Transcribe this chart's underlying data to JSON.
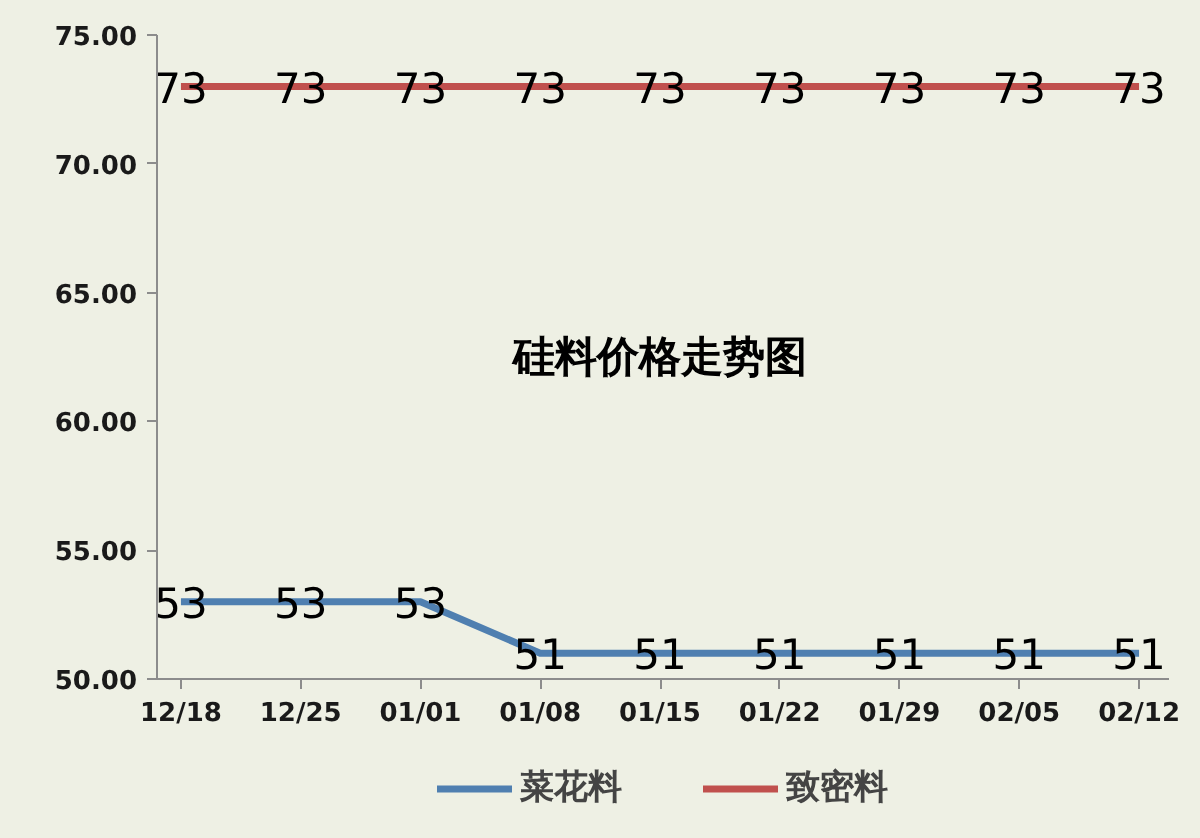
{
  "chart_data": {
    "type": "line",
    "title": "硅料价格走势图",
    "categories": [
      "12/18",
      "12/25",
      "01/01",
      "01/08",
      "01/15",
      "01/22",
      "01/29",
      "02/05",
      "02/12"
    ],
    "series": [
      {
        "name": "菜花料",
        "color": "#4f7fb0",
        "values": [
          53,
          53,
          53,
          51,
          51,
          51,
          51,
          51,
          51
        ]
      },
      {
        "name": "致密料",
        "color": "#c0504d",
        "values": [
          73,
          73,
          73,
          73,
          73,
          73,
          73,
          73,
          73
        ]
      }
    ],
    "ylim": [
      50,
      75
    ],
    "yticks": [
      {
        "value": 50,
        "label": "50.00"
      },
      {
        "value": 55,
        "label": "55.00"
      },
      {
        "value": 60,
        "label": "60.00"
      },
      {
        "value": 65,
        "label": "65.00"
      },
      {
        "value": 70,
        "label": "70.00"
      },
      {
        "value": 75,
        "label": "75.00"
      }
    ],
    "data_labels": true,
    "legend": "bottom",
    "line_style": "solid"
  }
}
